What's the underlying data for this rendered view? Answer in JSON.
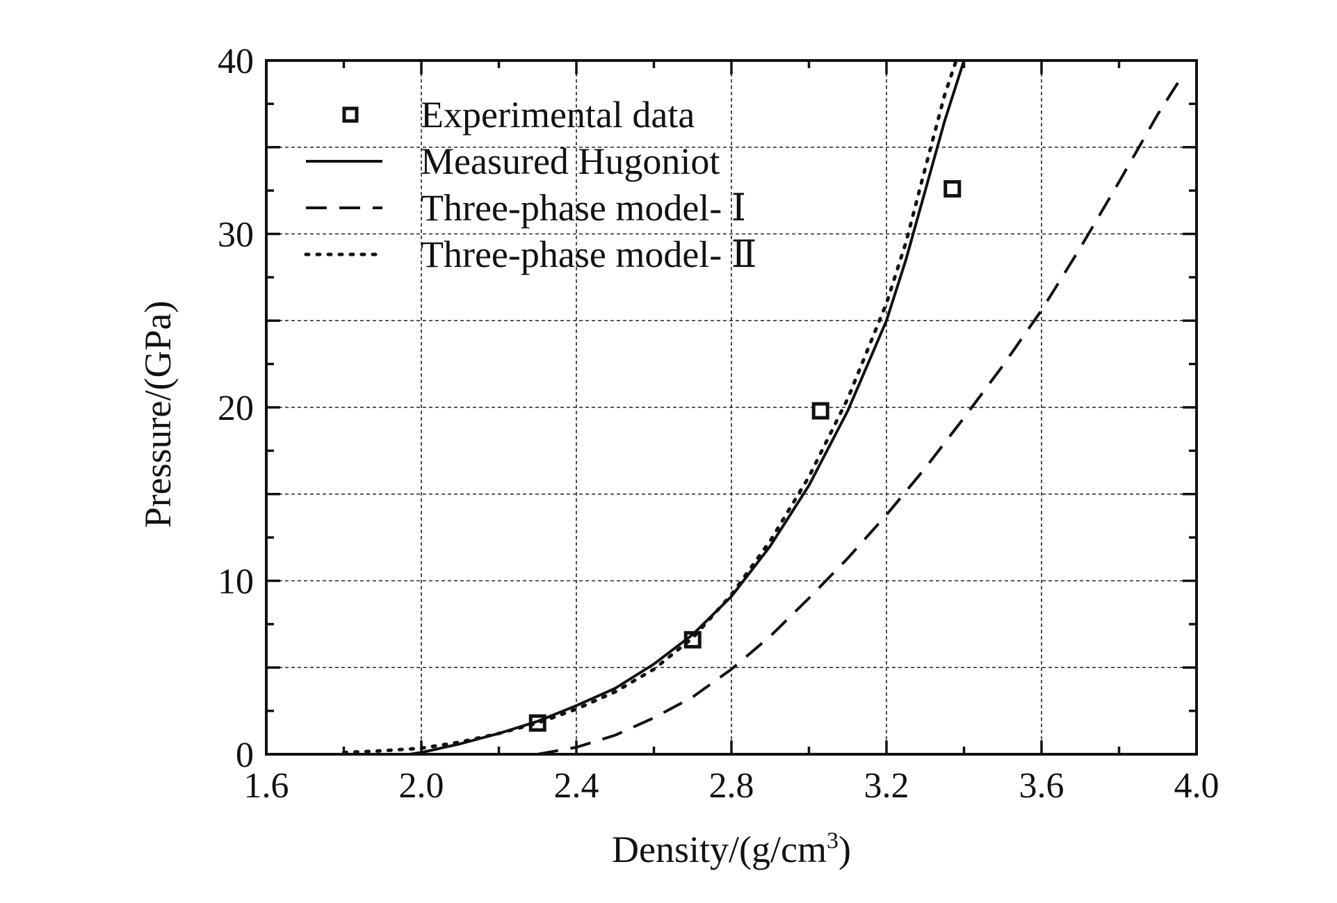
{
  "chart_data": {
    "type": "line",
    "title": "",
    "xlabel": "Density/(g/cm",
    "xlabel_sup": "3",
    "xlabel_end": ")",
    "ylabel": "Pressure/(GPa)",
    "xlim": [
      1.6,
      4.0
    ],
    "ylim": [
      0,
      40
    ],
    "xticks": [
      1.6,
      2.0,
      2.4,
      2.8,
      3.2,
      3.6,
      4.0
    ],
    "xtick_labels": [
      "1.6",
      "2.0",
      "2.4",
      "2.8",
      "3.2",
      "3.6",
      "4.0"
    ],
    "yticks": [
      0,
      10,
      20,
      30,
      40
    ],
    "ytick_labels": [
      "0",
      "10",
      "20",
      "30",
      "40"
    ],
    "grid": true,
    "legend_position": "top-left",
    "series": [
      {
        "name": "Experimental data",
        "style": "square-marker",
        "color": "#111111",
        "x": [
          2.3,
          2.7,
          3.03,
          3.37
        ],
        "y": [
          1.8,
          6.6,
          19.8,
          32.6
        ]
      },
      {
        "name": "Measured Hugoniot",
        "style": "solid",
        "color": "#111111",
        "x": [
          1.97,
          2.0,
          2.1,
          2.2,
          2.3,
          2.4,
          2.5,
          2.6,
          2.7,
          2.8,
          2.9,
          3.0,
          3.1,
          3.2,
          3.25,
          3.3,
          3.35,
          3.4
        ],
        "y": [
          0,
          0.1,
          0.6,
          1.2,
          1.9,
          2.8,
          3.8,
          5.2,
          6.9,
          9.1,
          12.0,
          15.5,
          19.8,
          25.0,
          28.5,
          32.5,
          36.5,
          40.0
        ]
      },
      {
        "name": "Three-phase model- Ⅰ",
        "style": "dashed",
        "color": "#111111",
        "x": [
          2.3,
          2.4,
          2.5,
          2.6,
          2.7,
          2.8,
          2.9,
          3.0,
          3.1,
          3.2,
          3.3,
          3.4,
          3.5,
          3.6,
          3.7,
          3.8,
          3.9,
          3.96
        ],
        "y": [
          0,
          0.4,
          1.1,
          2.1,
          3.3,
          4.9,
          6.8,
          9.0,
          11.3,
          13.8,
          16.5,
          19.4,
          22.4,
          25.6,
          29.2,
          33.0,
          36.9,
          39.0
        ]
      },
      {
        "name": "Three-phase model- Ⅱ",
        "style": "dotted",
        "color": "#111111",
        "x": [
          1.8,
          1.9,
          2.0,
          2.1,
          2.2,
          2.3,
          2.4,
          2.5,
          2.6,
          2.7,
          2.8,
          2.9,
          3.0,
          3.1,
          3.2,
          3.25,
          3.3,
          3.35,
          3.38
        ],
        "y": [
          0.1,
          0.2,
          0.35,
          0.7,
          1.2,
          1.8,
          2.6,
          3.6,
          4.9,
          6.7,
          9.2,
          12.3,
          16.0,
          20.5,
          26.0,
          29.5,
          33.8,
          38.0,
          40.0
        ]
      }
    ]
  }
}
